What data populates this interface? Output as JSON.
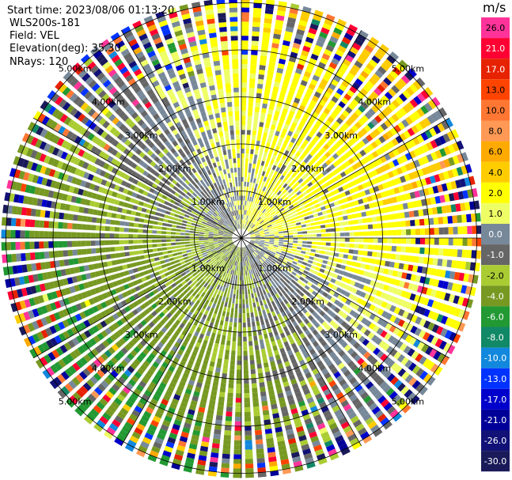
{
  "header": {
    "start_time": "Start time: 2023/08/06 01:13:20",
    "instrument": "WLS200s-181",
    "field": "Field: VEL",
    "elevation": "Elevation(deg): 35.30",
    "nrays": "NRays: 120"
  },
  "chart_data": {
    "type": "heatmap",
    "projection": "polar-ppi",
    "nrays": 120,
    "range_rings_km": [
      1.0,
      2.0,
      3.0,
      4.0,
      5.0
    ],
    "ring_labels": [
      {
        "ring": 1.0,
        "text": "1.00km"
      },
      {
        "ring": 2.0,
        "text": "2.00km"
      },
      {
        "ring": 3.0,
        "text": "3.00km"
      },
      {
        "ring": 4.0,
        "text": "4.00km"
      },
      {
        "ring": 5.0,
        "text": "5.00km"
      }
    ],
    "max_range_km": 5.1,
    "spokes_deg": [
      0,
      30,
      60,
      90,
      120,
      150,
      180,
      210,
      240,
      270,
      300,
      330
    ],
    "colorbar": {
      "unit": "m/s",
      "ticks": [
        "26.0",
        "21.0",
        "17.0",
        "13.0",
        "10.0",
        "8.0",
        "6.0",
        "4.0",
        "2.0",
        "1.0",
        "0.0",
        "-1.0",
        "-2.0",
        "-4.0",
        "-6.0",
        "-8.0",
        "-10.0",
        "-13.0",
        "-17.0",
        "-21.0",
        "-26.0",
        "-30.0"
      ],
      "colors": [
        "#ff3399",
        "#ff0033",
        "#e62200",
        "#ff4400",
        "#ff7733",
        "#ff9955",
        "#ffaa00",
        "#ffcc00",
        "#ffff00",
        "#eeff66",
        "#778899",
        "#666666",
        "#aacc33",
        "#779922",
        "#229933",
        "#118866",
        "#1188dd",
        "#0033ff",
        "#0000cc",
        "#000099",
        "#111177",
        "#1a1a5a"
      ]
    }
  }
}
